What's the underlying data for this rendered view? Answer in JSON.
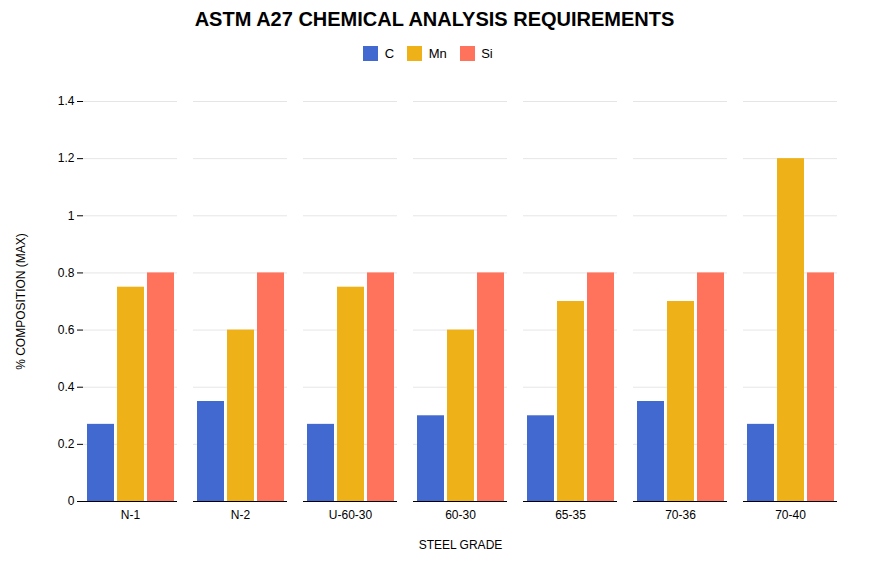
{
  "chart_data": {
    "type": "bar",
    "title": "ASTM A27 CHEMICAL ANALYSIS REQUIREMENTS",
    "xlabel": "STEEL GRADE",
    "ylabel": "% COMPOSITION (MAX)",
    "categories": [
      "N-1",
      "N-2",
      "U-60-30",
      "60-30",
      "65-35",
      "70-36",
      "70-40"
    ],
    "series": [
      {
        "name": "C",
        "values": [
          0.27,
          0.35,
          0.27,
          0.3,
          0.3,
          0.35,
          0.27
        ]
      },
      {
        "name": "Mn",
        "values": [
          0.75,
          0.6,
          0.75,
          0.6,
          0.7,
          0.7,
          1.2
        ]
      },
      {
        "name": "Si",
        "values": [
          0.8,
          0.8,
          0.8,
          0.8,
          0.8,
          0.8,
          0.8
        ]
      }
    ],
    "ylim": [
      0,
      1.4
    ],
    "yticks": [
      0,
      0.2,
      0.4,
      0.6,
      0.8,
      1,
      1.2,
      1.4
    ],
    "grid": true,
    "legend": "top"
  }
}
